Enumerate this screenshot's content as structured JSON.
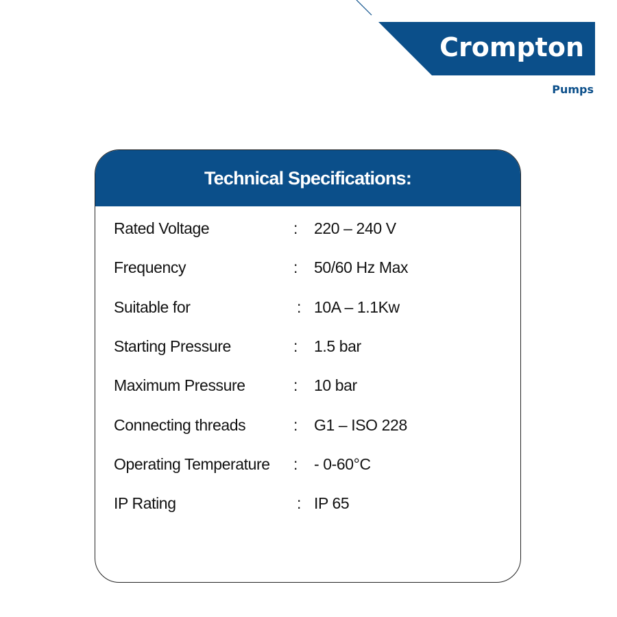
{
  "brand": {
    "name": "Crompton",
    "tagline": "Pumps"
  },
  "card": {
    "title": "Technical Specifications:",
    "rows": [
      [
        "Rated Voltage",
        ":",
        "220 – 240 V"
      ],
      [
        "Frequency",
        ":",
        "50/60 Hz Max"
      ],
      [
        "Suitable for",
        ":",
        "10A – 1.1Kw"
      ],
      [
        "Starting Pressure",
        ":",
        "1.5 bar"
      ],
      [
        "Maximum Pressure",
        ":",
        "10 bar"
      ],
      [
        "Connecting threads",
        ":",
        "G1 – ISO 228"
      ],
      [
        "Operating Temperature",
        ":",
        "- 0-60°C"
      ],
      [
        "IP Rating",
        ":",
        "IP 65"
      ]
    ]
  }
}
